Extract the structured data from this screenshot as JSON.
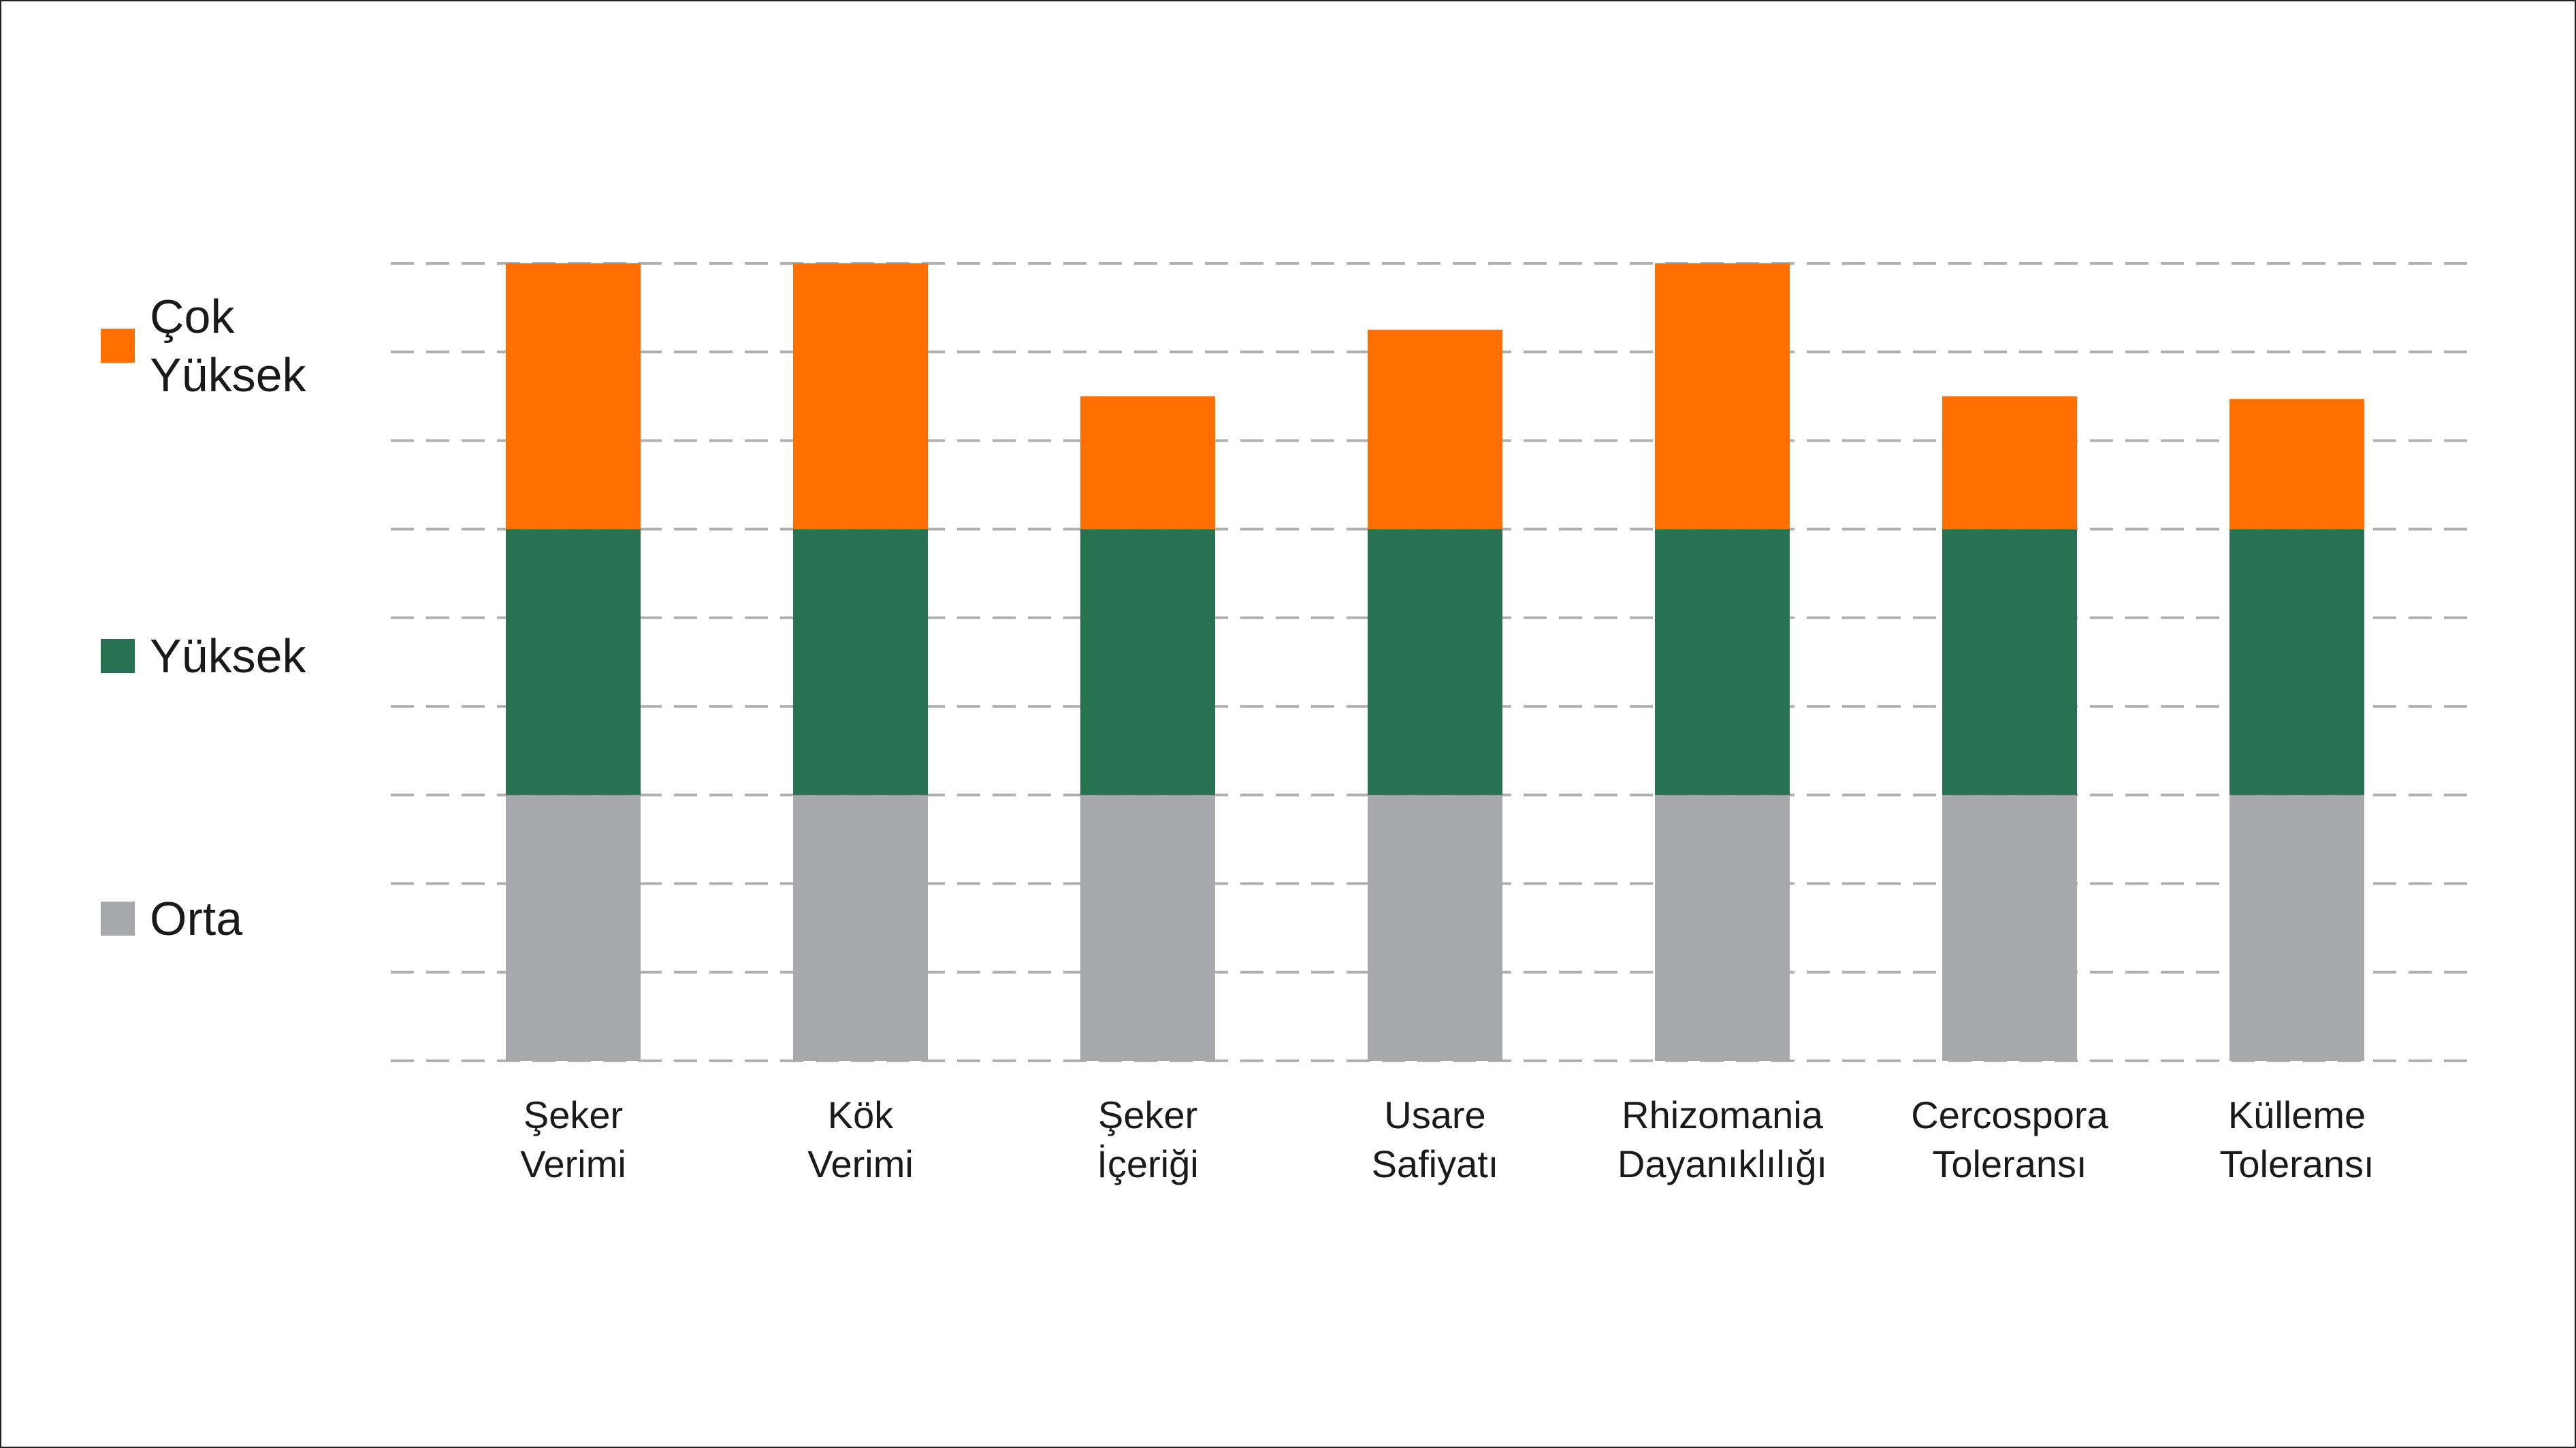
{
  "chart_data": {
    "type": "bar",
    "stacked": true,
    "categories": [
      [
        "Şeker",
        "Verimi"
      ],
      [
        "Kök",
        "Verimi"
      ],
      [
        "Şeker",
        "İçeriği"
      ],
      [
        "Usare",
        "Safiyatı"
      ],
      [
        "Rhizomania",
        "Dayanıklılığı"
      ],
      [
        "Cercospora",
        "Toleransı"
      ],
      [
        "Külleme",
        "Toleransı"
      ]
    ],
    "series": [
      {
        "name": "Orta",
        "color": "#a7a8ab",
        "values": [
          3,
          3,
          3,
          3,
          3,
          3,
          3
        ]
      },
      {
        "name": "Yüksek",
        "color": "#277253",
        "values": [
          3,
          3,
          3,
          3,
          3,
          3,
          3
        ]
      },
      {
        "name": "Çok Yüksek",
        "color": "#ff7000",
        "values": [
          3,
          3,
          1.5,
          2.25,
          3,
          1.5,
          1.47
        ]
      }
    ],
    "legend": [
      {
        "lines": [
          "Çok",
          "Yüksek"
        ],
        "color": "#ff7000"
      },
      {
        "lines": [
          "Yüksek"
        ],
        "color": "#277253"
      },
      {
        "lines": [
          "Orta"
        ],
        "color": "#a7a8ab"
      }
    ],
    "legend_position": "left",
    "ylim": [
      0,
      9
    ],
    "grid": true,
    "title": "",
    "xlabel": "",
    "ylabel": ""
  }
}
